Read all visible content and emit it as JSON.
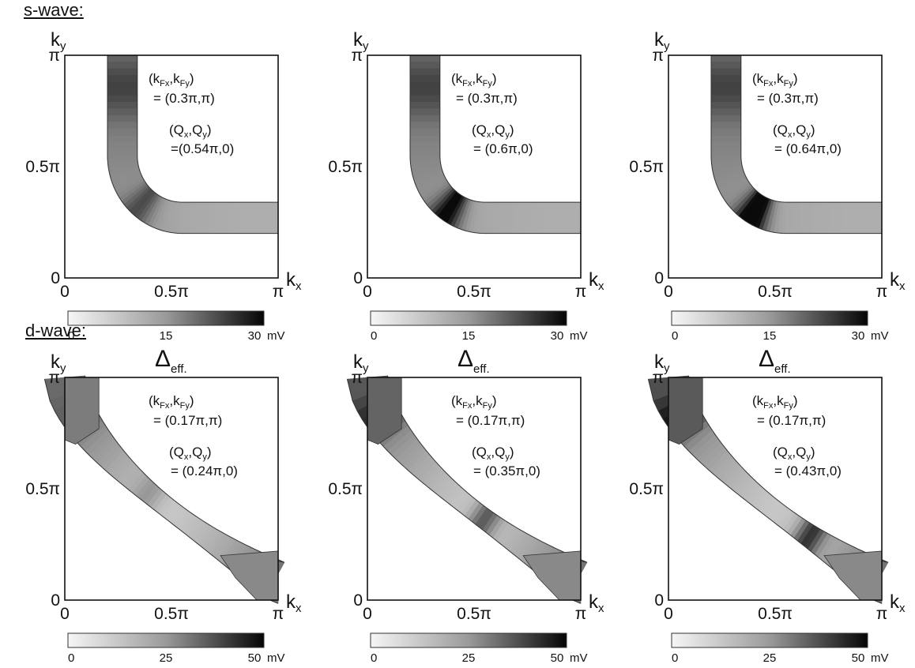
{
  "sections": [
    {
      "label": "s-wave:",
      "pairing": "s-wave"
    },
    {
      "label": "d-wave:",
      "pairing": "d-wave"
    }
  ],
  "axis": {
    "x_label_main": "k",
    "x_label_sub": "x",
    "y_label_main": "k",
    "y_label_sub": "y",
    "x_ticks": [
      "0",
      "0.5π",
      "π"
    ],
    "y_ticks": [
      "0",
      "0.5π",
      "π"
    ]
  },
  "annotation": {
    "kf_label": "(k",
    "kf_sub1": "Fx",
    "kf_mid": ",k",
    "kf_sub2": "Fy",
    "kf_end": ")",
    "q_label": "(Q",
    "q_sub1": "x",
    "q_mid": ",Q",
    "q_sub2": "y",
    "q_end": ")"
  },
  "colorbar_title_main": "Δ",
  "colorbar_title_sub": "eff.",
  "chart_data": [
    {
      "type": "heatmap",
      "pairing": "s-wave",
      "kF": "= (0.3π,π)",
      "Q": "=(0.54π,0)",
      "colorbar": {
        "ticks": [
          "0",
          "15",
          "30"
        ],
        "unit": "mV",
        "range": [
          0,
          30
        ]
      },
      "xlim": [
        0,
        3.1416
      ],
      "ylim": [
        0,
        3.1416
      ]
    },
    {
      "type": "heatmap",
      "pairing": "s-wave",
      "kF": "= (0.3π,π)",
      "Q": "= (0.6π,0)",
      "colorbar": {
        "ticks": [
          "0",
          "15",
          "30"
        ],
        "unit": "mV",
        "range": [
          0,
          30
        ]
      },
      "xlim": [
        0,
        3.1416
      ],
      "ylim": [
        0,
        3.1416
      ]
    },
    {
      "type": "heatmap",
      "pairing": "s-wave",
      "kF": "= (0.3π,π)",
      "Q": "= (0.64π,0)",
      "colorbar": {
        "ticks": [
          "0",
          "15",
          "30"
        ],
        "unit": "mV",
        "range": [
          0,
          30
        ]
      },
      "xlim": [
        0,
        3.1416
      ],
      "ylim": [
        0,
        3.1416
      ]
    },
    {
      "type": "heatmap",
      "pairing": "d-wave",
      "kF": "= (0.17π,π)",
      "Q": "= (0.24π,0)",
      "colorbar": {
        "ticks": [
          "0",
          "25",
          "50"
        ],
        "unit": "mV",
        "range": [
          0,
          50
        ]
      },
      "xlim": [
        0,
        3.1416
      ],
      "ylim": [
        0,
        3.1416
      ]
    },
    {
      "type": "heatmap",
      "pairing": "d-wave",
      "kF": "= (0.17π,π)",
      "Q": "= (0.35π,0)",
      "colorbar": {
        "ticks": [
          "0",
          "25",
          "50"
        ],
        "unit": "mV",
        "range": [
          0,
          50
        ]
      },
      "xlim": [
        0,
        3.1416
      ],
      "ylim": [
        0,
        3.1416
      ]
    },
    {
      "type": "heatmap",
      "pairing": "d-wave",
      "kF": "= (0.17π,π)",
      "Q": "= (0.43π,0)",
      "colorbar": {
        "ticks": [
          "0",
          "25",
          "50"
        ],
        "unit": "mV",
        "range": [
          0,
          50
        ]
      },
      "xlim": [
        0,
        3.1416
      ],
      "ylim": [
        0,
        3.1416
      ]
    }
  ]
}
